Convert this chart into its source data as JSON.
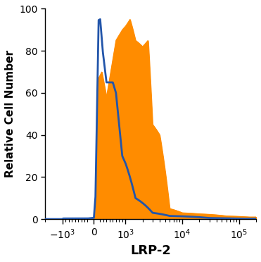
{
  "title": "",
  "xlabel": "LRP-2",
  "ylabel": "Relative Cell Number",
  "ylim": [
    0,
    100
  ],
  "yticks": [
    0,
    20,
    40,
    60,
    80,
    100
  ],
  "blue_color": "#2255aa",
  "orange_color": "#FF8C00",
  "bg_color": "#ffffff",
  "xlabel_fontsize": 13,
  "ylabel_fontsize": 11,
  "tick_fontsize": 10,
  "linthresh": 1000,
  "linscale": 0.5,
  "xlim_low": -2000,
  "xlim_high": 200000,
  "xtick_vals": [
    -1000,
    0,
    1000,
    10000,
    100000
  ],
  "xtick_labels": [
    "$-10^3$",
    "$0$",
    "$10^3$",
    "$10^4$",
    "$10^5$"
  ]
}
